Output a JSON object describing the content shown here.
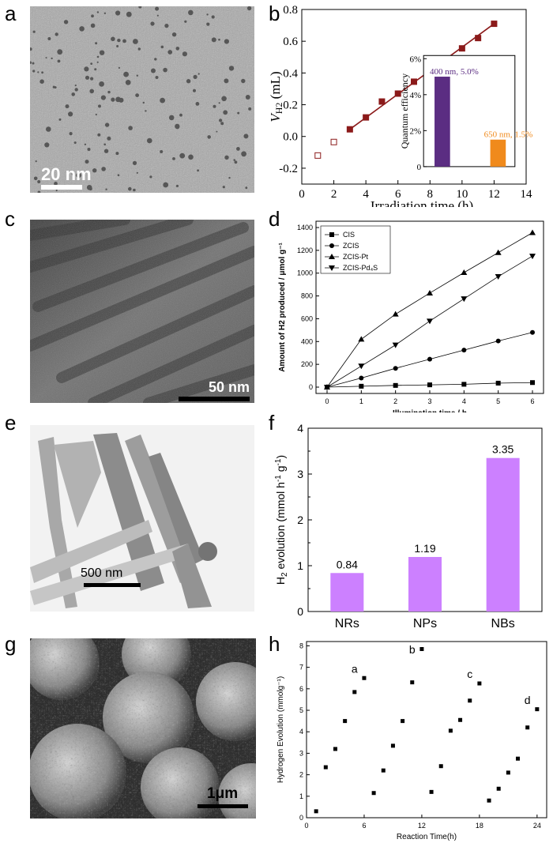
{
  "panel_labels": {
    "a": "a",
    "b": "b",
    "c": "c",
    "d": "d",
    "e": "e",
    "f": "f",
    "g": "g",
    "h": "h"
  },
  "images": {
    "a": {
      "scalebar": "20 nm"
    },
    "c": {
      "scalebar": "50 nm"
    },
    "e": {
      "scalebar": "500 nm"
    },
    "g": {
      "scalebar": "1μm"
    }
  },
  "chart_data": [
    {
      "id": "b",
      "type": "scatter",
      "xlabel": "Irradiation  time (h)",
      "ylabel": "V_H2 (mL)",
      "xlim": [
        0,
        14
      ],
      "ylim": [
        -0.3,
        0.8
      ],
      "xticks": [
        0,
        2,
        4,
        6,
        8,
        10,
        12,
        14
      ],
      "yticks": [
        -0.2,
        0.0,
        0.2,
        0.4,
        0.6,
        0.8
      ],
      "ytick_labels": [
        "-0.2",
        "0.0",
        "0.2",
        "0.4",
        "0.6",
        "0.8"
      ],
      "series": [
        {
          "style": "open",
          "x": [
            1,
            2
          ],
          "y": [
            -0.12,
            -0.035
          ]
        },
        {
          "style": "filled",
          "x": [
            3,
            4,
            5,
            6,
            7,
            8,
            9,
            10,
            11,
            12
          ],
          "y": [
            0.045,
            0.12,
            0.22,
            0.27,
            0.345,
            0.4,
            0.485,
            0.555,
            0.62,
            0.71
          ]
        }
      ],
      "fit_line": {
        "x": [
          3,
          12
        ],
        "y": [
          0.045,
          0.71
        ]
      },
      "inset": {
        "type": "bar",
        "ylabel": "Quantum efficiency",
        "ylim": [
          0,
          6
        ],
        "yticks": [
          "0",
          "2%",
          "4%",
          "6%"
        ],
        "bars": [
          {
            "label": "400 nm, 5.0%",
            "value": 5.0,
            "color": "#5b2d82"
          },
          {
            "label": "650 nm, 1.5%",
            "value": 1.5,
            "color": "#f08a1c"
          }
        ]
      },
      "colors": {
        "line": "#8b1a1a",
        "marker": "#8b1a1a"
      }
    },
    {
      "id": "d",
      "type": "line",
      "xlabel": "Illumination time / h",
      "ylabel": "Amount of H2 produced / μmol g⁻¹",
      "xlim": [
        0,
        6
      ],
      "ylim": [
        0,
        1400
      ],
      "xticks": [
        0,
        1,
        2,
        3,
        4,
        5,
        6
      ],
      "yticks": [
        0,
        200,
        400,
        600,
        800,
        1000,
        1200,
        1400
      ],
      "x": [
        0,
        1,
        2,
        3,
        4,
        5,
        6
      ],
      "series": [
        {
          "name": "CIS",
          "marker": "square",
          "values": [
            0,
            8,
            15,
            20,
            25,
            35,
            40
          ]
        },
        {
          "name": "ZCIS",
          "marker": "circle",
          "values": [
            0,
            80,
            165,
            245,
            325,
            405,
            480
          ]
        },
        {
          "name": "ZCIS-Pt",
          "marker": "triangle-up",
          "values": [
            0,
            420,
            640,
            825,
            1005,
            1180,
            1355
          ]
        },
        {
          "name": "ZCIS-Pd₄S",
          "marker": "triangle-down",
          "values": [
            0,
            185,
            370,
            580,
            775,
            970,
            1150
          ]
        }
      ],
      "legend_placement": "top-left"
    },
    {
      "id": "f",
      "type": "bar",
      "ylabel": "H2 evolution (mmol h⁻¹ g⁻¹)",
      "categories": [
        "NRs",
        "NPs",
        "NBs"
      ],
      "values": [
        0.84,
        1.19,
        3.35
      ],
      "value_labels": [
        "0.84",
        "1.19",
        "3.35"
      ],
      "ylim": [
        0,
        4
      ],
      "yticks": [
        0,
        1,
        2,
        3,
        4
      ],
      "color": "#cc80ff"
    },
    {
      "id": "h",
      "type": "scatter",
      "xlabel": "Reaction Time(h)",
      "ylabel": "Hydrogen Evolution (mmolg⁻¹)",
      "xlim": [
        0,
        25
      ],
      "ylim": [
        0,
        8.2
      ],
      "xticks": [
        0,
        6,
        12,
        18,
        24
      ],
      "yticks": [
        0,
        1,
        2,
        3,
        4,
        5,
        6,
        7,
        8
      ],
      "series": [
        {
          "x": [
            1,
            2,
            3,
            4,
            5,
            6,
            7,
            8,
            9,
            10,
            11,
            12,
            13,
            14,
            15,
            16,
            17,
            18,
            19,
            20,
            21,
            22,
            23,
            24
          ],
          "y": [
            0.3,
            2.35,
            3.2,
            4.5,
            5.85,
            6.5,
            1.15,
            2.2,
            3.35,
            4.5,
            6.3,
            7.85,
            1.2,
            2.4,
            4.05,
            4.55,
            5.45,
            6.25,
            0.8,
            1.35,
            2.1,
            2.75,
            4.2,
            5.05
          ]
        }
      ],
      "annotations": [
        {
          "text": "a",
          "x": 5,
          "y": 6.75
        },
        {
          "text": "b",
          "x": 11,
          "y": 7.65
        },
        {
          "text": "c",
          "x": 17,
          "y": 6.5
        },
        {
          "text": "d",
          "x": 23,
          "y": 5.3
        }
      ]
    }
  ]
}
